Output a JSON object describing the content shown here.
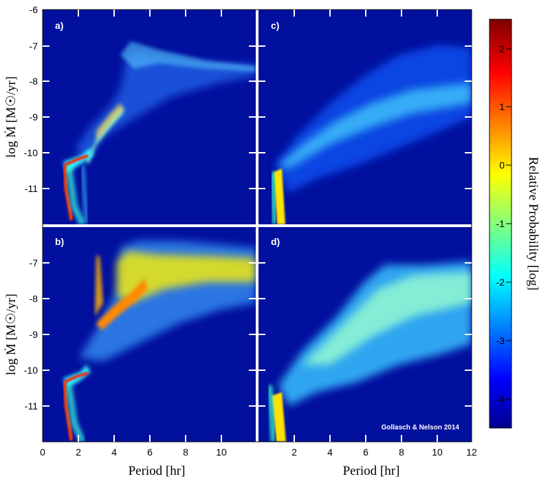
{
  "chart_data": {
    "type": "heatmap",
    "panels": [
      {
        "id": "a",
        "label": "a)"
      },
      {
        "id": "b",
        "label": "b)"
      },
      {
        "id": "c",
        "label": "c)"
      },
      {
        "id": "d",
        "label": "d)"
      }
    ],
    "xlabel": "Period [hr]",
    "ylabel": "log Ṁ [M☉/yr]",
    "xlim_left": [
      0,
      12
    ],
    "xlim_right": [
      0,
      12
    ],
    "ylim": [
      -12,
      -6
    ],
    "x_ticks_left": [
      "0",
      "2",
      "4",
      "6",
      "8",
      "10"
    ],
    "x_ticks_right": [
      "2",
      "4",
      "6",
      "8",
      "10",
      "12"
    ],
    "y_ticks_top": [
      "-6",
      "-7",
      "-8",
      "-9",
      "-10",
      "-11"
    ],
    "y_ticks_bottom": [
      "-7",
      "-8",
      "-9",
      "-10",
      "-11"
    ],
    "colorbar": {
      "label": "Relative Probability [log]",
      "ticks": [
        "2",
        "1",
        "0",
        "-1",
        "-2",
        "-3",
        "-4"
      ],
      "range": [
        -4.5,
        2.5
      ]
    },
    "annotation": "Gollasch & Nelson 2014",
    "colors": {
      "background": "#00008f",
      "panel_bg": "#02109e",
      "separator": "#ffffff"
    }
  }
}
